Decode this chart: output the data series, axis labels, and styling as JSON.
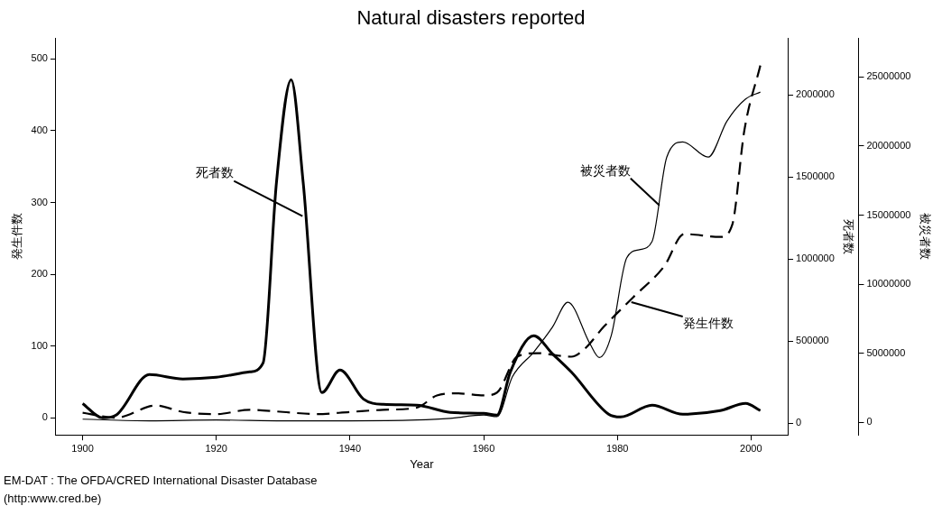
{
  "chart_data": {
    "type": "line",
    "title": "Natural disasters reported",
    "xlabel": "Year",
    "ylabel": "発生件数",
    "y2label": "死者数",
    "y3label": "被災者数",
    "xlim": [
      1896,
      2005.5
    ],
    "xticks": [
      1900,
      1920,
      1940,
      1960,
      1980,
      2000
    ],
    "ylim": [
      -24,
      529
    ],
    "yticks": [
      0,
      100,
      200,
      300,
      400,
      500
    ],
    "y2lim": [
      -71000,
      2346000
    ],
    "y2ticks": [
      0,
      500000,
      1000000,
      1500000,
      2000000
    ],
    "y3lim": [
      -900000,
      27800000
    ],
    "y3ticks": [
      0,
      5000000,
      10000000,
      15000000,
      20000000,
      25000000
    ],
    "grid": false,
    "legend": false,
    "marker": "none",
    "series": [
      {
        "color": "#000000",
        "axis": "y2",
        "line_style": "solid",
        "x": [
          1900,
          1903,
          1905,
          1910,
          1915,
          1920,
          1925,
          1927,
          1929,
          1931.2,
          1933,
          1935.8,
          1938.5,
          1942,
          1945,
          1950,
          1955,
          1960,
          1962,
          1964,
          1967.5,
          1970.3,
          1973.1,
          1978.7,
          1980.5,
          1985.2,
          1989.8,
          1995.4,
          1999.2,
          2001.4
        ],
        "values": [
          120000,
          33000,
          50000,
          297000,
          270000,
          280000,
          313000,
          368000,
          1467000,
          2093000,
          1467000,
          187000,
          324000,
          148000,
          115000,
          110000,
          66000,
          60000,
          50000,
          313000,
          533000,
          423000,
          313000,
          55000,
          38000,
          110000,
          55000,
          77000,
          121000,
          77000
        ]
      },
      {
        "color": "#000000",
        "axis": "y3",
        "line_style": "solid",
        "x": [
          1900,
          1910,
          1920,
          1930,
          1940,
          1950,
          1955,
          1960,
          1962,
          1964.3,
          1967.5,
          1970.3,
          1972.6,
          1975.9,
          1977.3,
          1979.1,
          1981.4,
          1983.3,
          1985.2,
          1987.4,
          1989.8,
          1993.6,
          1996.4,
          1999.2,
          2001.4
        ],
        "values": [
          240000,
          120000,
          180000,
          120000,
          120000,
          180000,
          300000,
          540000,
          420000,
          3300000,
          5100000,
          6900000,
          8700000,
          5700000,
          4700000,
          6300000,
          11900000,
          12500000,
          13100000,
          19200000,
          20300000,
          19200000,
          21800000,
          23400000,
          23900000
        ]
      },
      {
        "color": "#000000",
        "axis": "y",
        "line_style": "dashed",
        "x": [
          1900,
          1905,
          1911,
          1915,
          1920,
          1925,
          1930,
          1935,
          1940,
          1945,
          1950,
          1953,
          1956,
          1960,
          1962,
          1965,
          1968,
          1973.1,
          1975,
          1978,
          1982.4,
          1987,
          1990,
          1995.4,
          1997.2,
          1999,
          2001.4
        ],
        "values": [
          7,
          0,
          17,
          8,
          5,
          11,
          8,
          5,
          8,
          11,
          14,
          31,
          34,
          31,
          35,
          85,
          90,
          85,
          95,
          127,
          168,
          211,
          256,
          252,
          269,
          400,
          491
        ]
      }
    ],
    "annotations": [
      {
        "text": "死者数",
        "x": 1932.9,
        "y": 281
      },
      {
        "text": "被災者数",
        "x": 1986.3,
        "y": 296
      },
      {
        "text": "発生件数",
        "x": 1982.1,
        "y": 161
      },
      "EM-DAT : The OFDA/CRED International Disaster Database",
      "(http:www.cred.be)"
    ]
  }
}
